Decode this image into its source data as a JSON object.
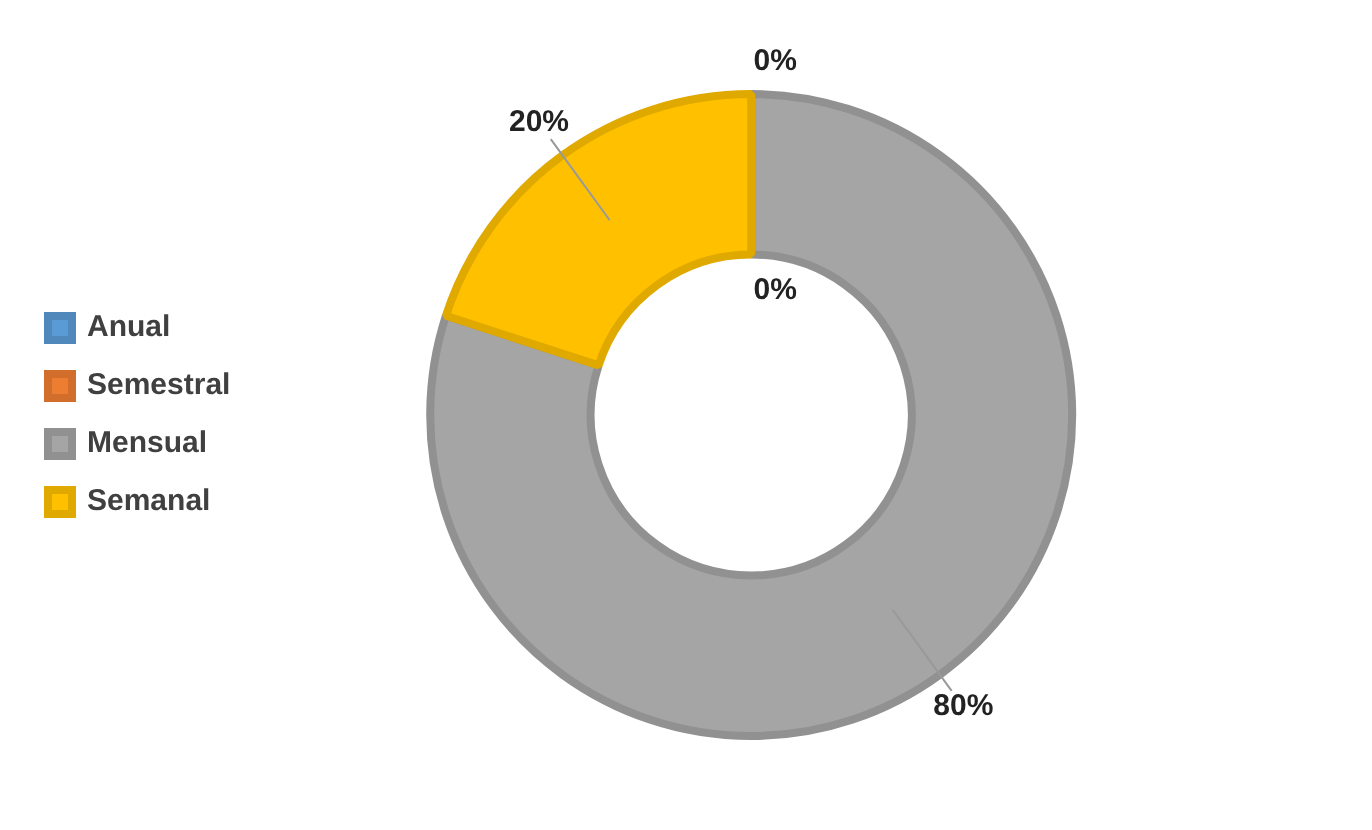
{
  "chart_data": {
    "type": "donut",
    "categories": [
      "Anual",
      "Semestral",
      "Mensual",
      "Semanal"
    ],
    "values": [
      0,
      0,
      80,
      20
    ],
    "value_labels": [
      "0%",
      "0%",
      "80%",
      "20%"
    ],
    "colors": [
      "#5b9bd5",
      "#ed7d31",
      "#a5a5a5",
      "#ffc000"
    ],
    "legend": "left"
  }
}
